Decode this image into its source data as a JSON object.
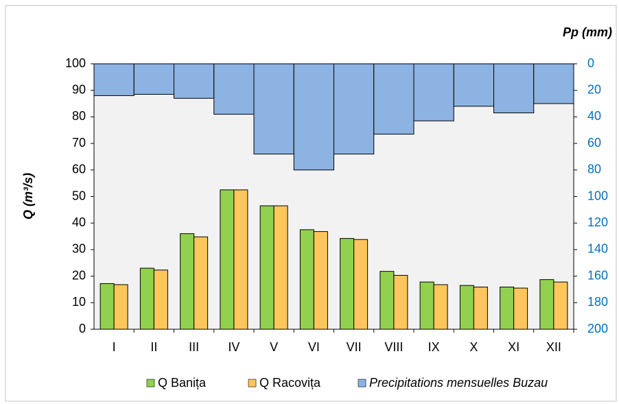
{
  "chart_data": {
    "type": "bar-precip",
    "categories": [
      "I",
      "II",
      "III",
      "IV",
      "V",
      "VI",
      "VII",
      "VIII",
      "IX",
      "X",
      "XI",
      "XII"
    ],
    "y_label": "Q (m³/s)",
    "y2_label": "Pp (mm)",
    "ylim": [
      0,
      100
    ],
    "yticks": [
      0,
      10,
      20,
      30,
      40,
      50,
      60,
      70,
      80,
      90,
      100
    ],
    "y2lim": [
      200,
      0
    ],
    "y2ticks": [
      0,
      20,
      40,
      60,
      80,
      100,
      120,
      140,
      160,
      180,
      200
    ],
    "legend": "bottom",
    "background": "#f2f2f2",
    "series": [
      {
        "name": "Q Banița",
        "color": "#92d050",
        "values": [
          17.2,
          23,
          36,
          52.5,
          46.5,
          37.5,
          34.2,
          21.8,
          17.8,
          16.5,
          15.9,
          18.7
        ]
      },
      {
        "name": "Q Racovița",
        "color": "#ffc65c",
        "values": [
          16.8,
          22.3,
          34.8,
          52.5,
          46.5,
          36.8,
          33.8,
          20.3,
          16.8,
          15.9,
          15.5,
          17.8
        ]
      },
      {
        "name": "Precipitations mensuelles Buzau",
        "color": "#8db3e2",
        "axis": "y2",
        "values": [
          24,
          23,
          26,
          38,
          68,
          80,
          68,
          53,
          43,
          32,
          37,
          30
        ]
      }
    ]
  }
}
